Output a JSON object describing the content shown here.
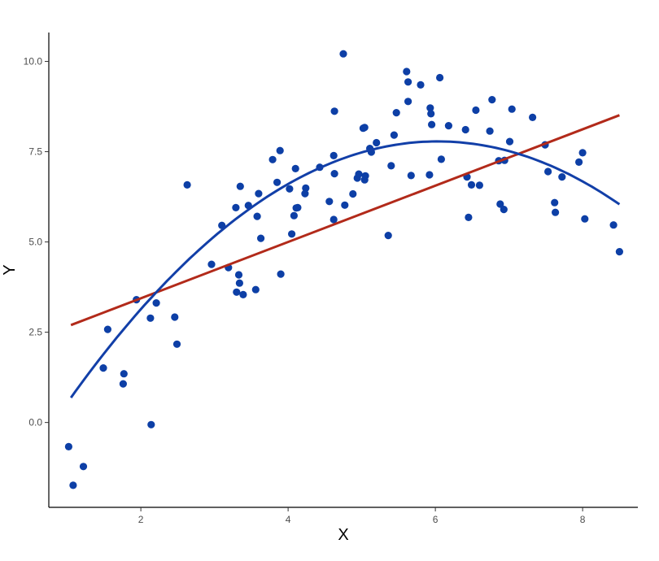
{
  "chart_data": {
    "type": "scatter",
    "title": "",
    "xlabel": "X",
    "ylabel": "Y",
    "xlim": [
      0.75,
      8.75
    ],
    "ylim": [
      -2.35,
      10.8
    ],
    "x_ticks": [
      2,
      4,
      6,
      8
    ],
    "y_ticks": [
      0.0,
      2.5,
      5.0,
      7.5,
      10.0
    ],
    "x_tick_labels": [
      "2",
      "4",
      "6",
      "8"
    ],
    "y_tick_labels": [
      "0.0",
      "2.5",
      "5.0",
      "7.5",
      "10.0"
    ],
    "grid": false,
    "legend": "none",
    "colors": {
      "points": "#0d3fa6",
      "linear_fit": "#b22a1a",
      "quadratic_fit": "#123fa8"
    },
    "points": [
      [
        1.02,
        -0.67
      ],
      [
        1.08,
        -1.74
      ],
      [
        1.22,
        -1.22
      ],
      [
        1.49,
        1.51
      ],
      [
        1.55,
        2.58
      ],
      [
        1.76,
        1.07
      ],
      [
        1.77,
        1.35
      ],
      [
        1.94,
        3.4
      ],
      [
        2.13,
        2.89
      ],
      [
        2.14,
        -0.06
      ],
      [
        2.21,
        3.31
      ],
      [
        2.46,
        2.92
      ],
      [
        2.49,
        2.17
      ],
      [
        2.63,
        6.58
      ],
      [
        2.96,
        4.38
      ],
      [
        3.1,
        5.46
      ],
      [
        3.19,
        4.29
      ],
      [
        3.29,
        5.95
      ],
      [
        3.3,
        3.61
      ],
      [
        3.33,
        4.09
      ],
      [
        3.34,
        3.86
      ],
      [
        3.35,
        6.54
      ],
      [
        3.39,
        3.54
      ],
      [
        3.46,
        6.01
      ],
      [
        3.56,
        3.68
      ],
      [
        3.6,
        6.34
      ],
      [
        3.63,
        5.1
      ],
      [
        3.58,
        5.71
      ],
      [
        3.79,
        7.28
      ],
      [
        3.85,
        6.65
      ],
      [
        3.89,
        7.53
      ],
      [
        3.9,
        4.11
      ],
      [
        4.02,
        6.47
      ],
      [
        4.05,
        5.22
      ],
      [
        4.08,
        5.73
      ],
      [
        4.1,
        7.03
      ],
      [
        4.11,
        5.94
      ],
      [
        4.13,
        5.95
      ],
      [
        4.24,
        6.49
      ],
      [
        4.23,
        6.34
      ],
      [
        4.43,
        7.07
      ],
      [
        4.56,
        6.12
      ],
      [
        4.62,
        7.39
      ],
      [
        4.63,
        8.62
      ],
      [
        4.63,
        6.89
      ],
      [
        4.62,
        5.62
      ],
      [
        4.75,
        10.21
      ],
      [
        4.77,
        6.02
      ],
      [
        4.88,
        6.33
      ],
      [
        4.94,
        6.77
      ],
      [
        4.96,
        6.88
      ],
      [
        5.02,
        8.15
      ],
      [
        5.04,
        8.17
      ],
      [
        5.04,
        6.72
      ],
      [
        5.05,
        6.83
      ],
      [
        5.11,
        7.59
      ],
      [
        5.13,
        7.49
      ],
      [
        5.2,
        7.75
      ],
      [
        5.36,
        5.18
      ],
      [
        5.4,
        7.11
      ],
      [
        5.44,
        7.96
      ],
      [
        5.47,
        8.58
      ],
      [
        5.61,
        9.72
      ],
      [
        5.63,
        9.43
      ],
      [
        5.63,
        8.89
      ],
      [
        5.67,
        6.84
      ],
      [
        5.8,
        9.35
      ],
      [
        5.92,
        6.86
      ],
      [
        5.93,
        8.71
      ],
      [
        5.94,
        8.55
      ],
      [
        5.95,
        8.25
      ],
      [
        6.06,
        9.55
      ],
      [
        6.08,
        7.29
      ],
      [
        6.18,
        8.22
      ],
      [
        6.41,
        8.11
      ],
      [
        6.43,
        6.8
      ],
      [
        6.45,
        5.68
      ],
      [
        6.49,
        6.58
      ],
      [
        6.55,
        8.65
      ],
      [
        6.6,
        6.57
      ],
      [
        6.74,
        8.07
      ],
      [
        6.77,
        8.94
      ],
      [
        6.86,
        7.25
      ],
      [
        6.88,
        6.05
      ],
      [
        6.93,
        5.9
      ],
      [
        6.94,
        7.26
      ],
      [
        7.01,
        7.78
      ],
      [
        7.04,
        8.68
      ],
      [
        7.32,
        8.45
      ],
      [
        7.49,
        7.69
      ],
      [
        7.53,
        6.95
      ],
      [
        7.62,
        6.09
      ],
      [
        7.63,
        5.82
      ],
      [
        7.72,
        6.8
      ],
      [
        7.95,
        7.21
      ],
      [
        8.0,
        7.47
      ],
      [
        8.03,
        5.64
      ],
      [
        8.42,
        5.47
      ],
      [
        8.5,
        4.73
      ]
    ],
    "linear_fit": {
      "x_range": [
        1.05,
        8.5
      ],
      "intercept": 1.88,
      "slope": 0.78
    },
    "quadratic_fit": {
      "x_range": [
        1.05,
        8.5
      ],
      "a": -0.286,
      "b": 3.45,
      "c": -2.62
    }
  }
}
